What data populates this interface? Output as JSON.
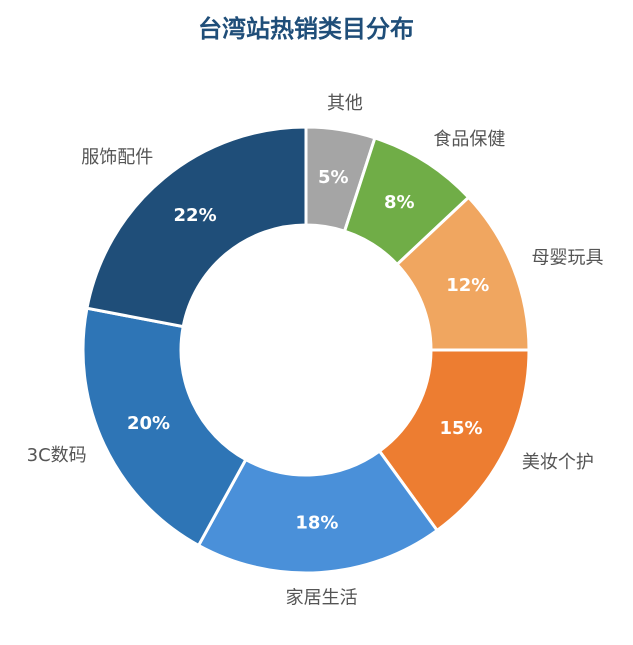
{
  "chart_data": {
    "type": "donut",
    "title": "台湾站热销类目分布",
    "categories": [
      "其他",
      "食品保健",
      "母婴玩具",
      "美妆个护",
      "家居生活",
      "3C数码",
      "服饰配件"
    ],
    "values": [
      5,
      8,
      12,
      15,
      18,
      20,
      22
    ],
    "value_labels": [
      "5%",
      "8%",
      "12%",
      "15%",
      "18%",
      "20%",
      "22%"
    ],
    "colors": [
      "#a5a5a5",
      "#70ad47",
      "#f0a660",
      "#ed7d31",
      "#4a90d9",
      "#2e75b6",
      "#1f4e79"
    ]
  }
}
